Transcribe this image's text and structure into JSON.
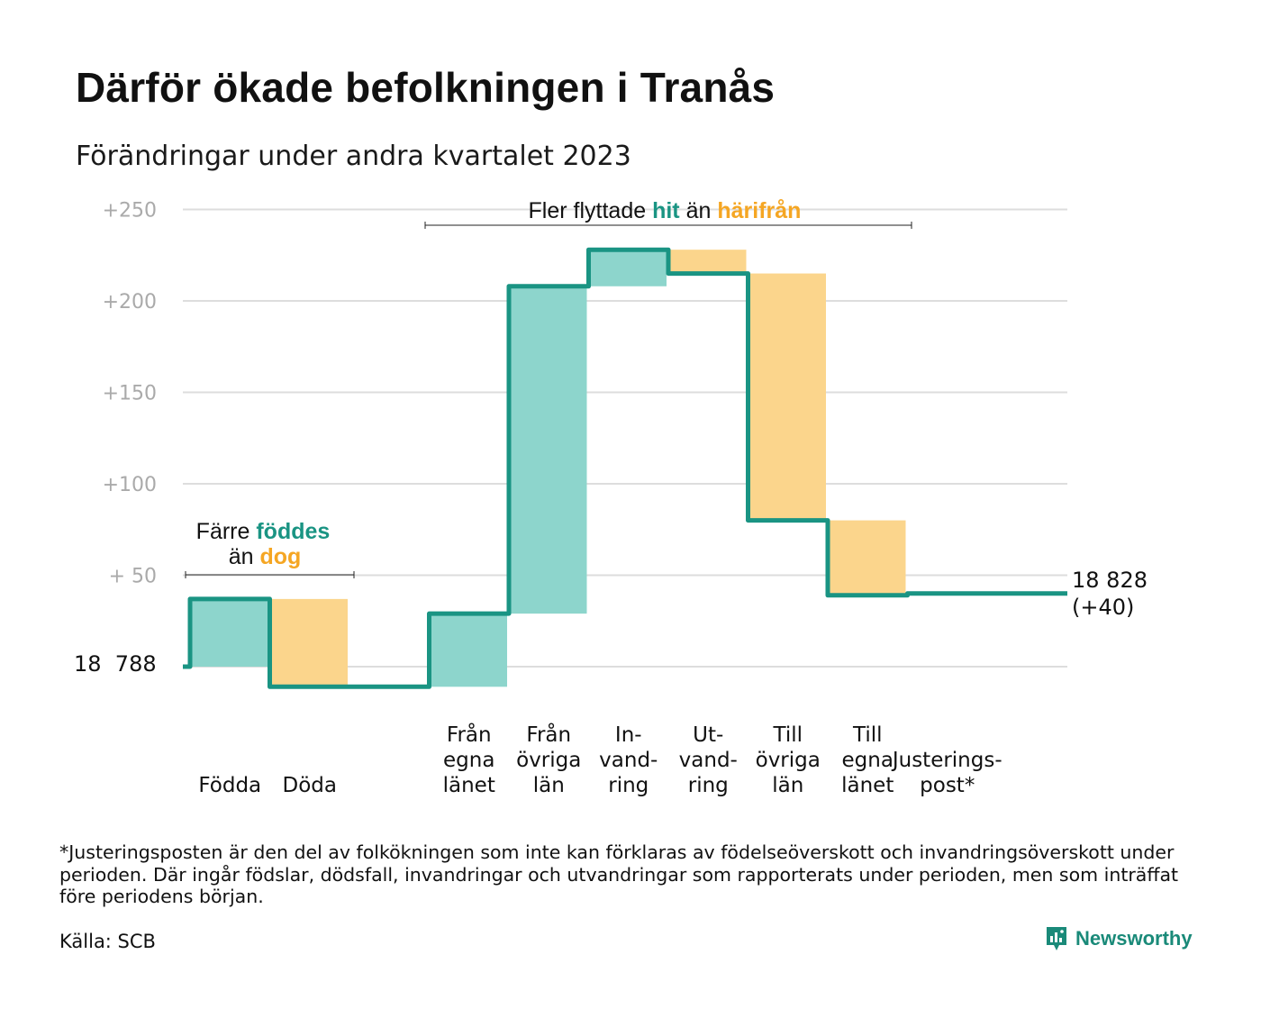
{
  "title": "Därför ökade befolkningen i Tranås",
  "subtitle": "Förändringar under andra kvartalet 2023",
  "footnote": "*Justeringsposten är den del av folkökningen som inte kan förklaras av födelseöverskott och invandringsöverskott under perioden. Där ingår födslar, dödsfall, invandringar och utvandringar som rapporterats under perioden, men som inträffat före periodens början.",
  "source": "Källa: SCB",
  "brand": "Newsworthy",
  "colors": {
    "increase": "#8dd5cc",
    "decrease": "#fbd58c",
    "line": "#1a9483",
    "orange_text": "#f5a623",
    "grid": "#dddddd",
    "tick": "#aaaaaa"
  },
  "annotations": {
    "migration": {
      "prefix": "Fler flyttade",
      "hit": "hit",
      "middle": "än",
      "harifran": "härifrån"
    },
    "natural": {
      "line1_prefix": "Färre",
      "line1_highlight": "föddes",
      "line2_prefix": "än",
      "line2_highlight": "dog"
    }
  },
  "chart_data": {
    "type": "waterfall",
    "start_value_label": "18  788",
    "end_value_label": "18 828",
    "end_change_label": "(+40)",
    "ylim": [
      -10,
      250
    ],
    "yticks": [
      {
        "value": 50,
        "label": "+  50"
      },
      {
        "value": 100,
        "label": "+100"
      },
      {
        "value": 150,
        "label": "+150"
      },
      {
        "value": 200,
        "label": "+200"
      },
      {
        "value": 250,
        "label": "+250"
      }
    ],
    "items": [
      {
        "label": [
          "",
          "",
          "Födda"
        ],
        "delta": 37,
        "kind": "increase"
      },
      {
        "label": [
          "",
          "",
          "Döda"
        ],
        "delta": -48,
        "kind": "decrease"
      },
      {
        "label": [
          "",
          "",
          ""
        ],
        "delta": 0,
        "kind": "gap"
      },
      {
        "label": [
          "Från",
          "egna",
          "länet"
        ],
        "delta": 40,
        "kind": "increase"
      },
      {
        "label": [
          "Från",
          "övriga",
          "län"
        ],
        "delta": 179,
        "kind": "increase"
      },
      {
        "label": [
          "In-",
          "vand-",
          "ring"
        ],
        "delta": 20,
        "kind": "increase"
      },
      {
        "label": [
          "Ut-",
          "vand-",
          "ring"
        ],
        "delta": -13,
        "kind": "decrease"
      },
      {
        "label": [
          "Till",
          "övriga",
          "län"
        ],
        "delta": -135,
        "kind": "decrease"
      },
      {
        "label": [
          "Till",
          "egna",
          "länet"
        ],
        "delta": -41,
        "kind": "decrease"
      },
      {
        "label": [
          "",
          "Justerings-",
          "post*"
        ],
        "delta": 1,
        "kind": "adjustment"
      }
    ],
    "final_change": 40
  }
}
